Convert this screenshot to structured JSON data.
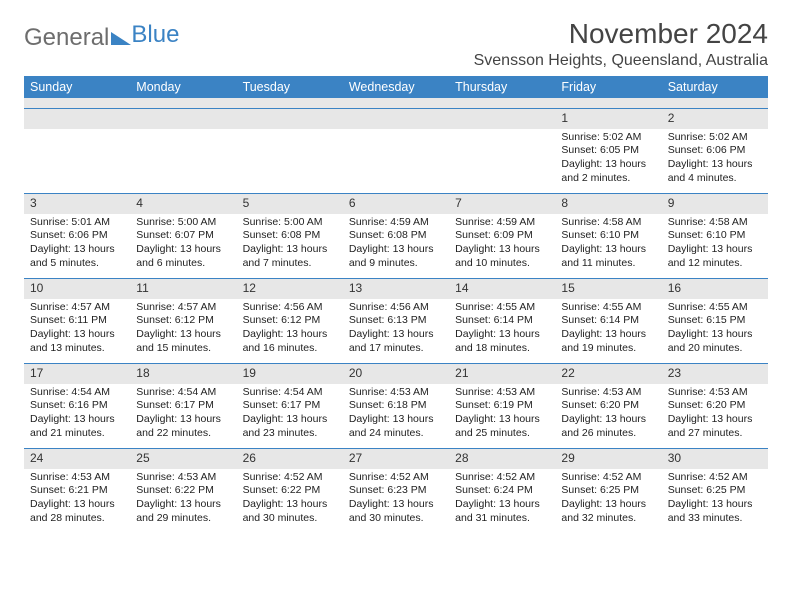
{
  "logo": {
    "word1": "General",
    "word2": "Blue"
  },
  "title": "November 2024",
  "location": "Svensson Heights, Queensland, Australia",
  "day_names": [
    "Sunday",
    "Monday",
    "Tuesday",
    "Wednesday",
    "Thursday",
    "Friday",
    "Saturday"
  ],
  "colors": {
    "header_bg": "#3b83c4",
    "header_fg": "#ffffff",
    "stripe": "#e7e7e7",
    "rule": "#3b83c4",
    "logo_gray": "#6d6d6d",
    "logo_blue": "#3b83c4"
  },
  "weeks": [
    [
      null,
      null,
      null,
      null,
      null,
      {
        "n": "1",
        "sunrise": "Sunrise: 5:02 AM",
        "sunset": "Sunset: 6:05 PM",
        "daylight": "Daylight: 13 hours and 2 minutes."
      },
      {
        "n": "2",
        "sunrise": "Sunrise: 5:02 AM",
        "sunset": "Sunset: 6:06 PM",
        "daylight": "Daylight: 13 hours and 4 minutes."
      }
    ],
    [
      {
        "n": "3",
        "sunrise": "Sunrise: 5:01 AM",
        "sunset": "Sunset: 6:06 PM",
        "daylight": "Daylight: 13 hours and 5 minutes."
      },
      {
        "n": "4",
        "sunrise": "Sunrise: 5:00 AM",
        "sunset": "Sunset: 6:07 PM",
        "daylight": "Daylight: 13 hours and 6 minutes."
      },
      {
        "n": "5",
        "sunrise": "Sunrise: 5:00 AM",
        "sunset": "Sunset: 6:08 PM",
        "daylight": "Daylight: 13 hours and 7 minutes."
      },
      {
        "n": "6",
        "sunrise": "Sunrise: 4:59 AM",
        "sunset": "Sunset: 6:08 PM",
        "daylight": "Daylight: 13 hours and 9 minutes."
      },
      {
        "n": "7",
        "sunrise": "Sunrise: 4:59 AM",
        "sunset": "Sunset: 6:09 PM",
        "daylight": "Daylight: 13 hours and 10 minutes."
      },
      {
        "n": "8",
        "sunrise": "Sunrise: 4:58 AM",
        "sunset": "Sunset: 6:10 PM",
        "daylight": "Daylight: 13 hours and 11 minutes."
      },
      {
        "n": "9",
        "sunrise": "Sunrise: 4:58 AM",
        "sunset": "Sunset: 6:10 PM",
        "daylight": "Daylight: 13 hours and 12 minutes."
      }
    ],
    [
      {
        "n": "10",
        "sunrise": "Sunrise: 4:57 AM",
        "sunset": "Sunset: 6:11 PM",
        "daylight": "Daylight: 13 hours and 13 minutes."
      },
      {
        "n": "11",
        "sunrise": "Sunrise: 4:57 AM",
        "sunset": "Sunset: 6:12 PM",
        "daylight": "Daylight: 13 hours and 15 minutes."
      },
      {
        "n": "12",
        "sunrise": "Sunrise: 4:56 AM",
        "sunset": "Sunset: 6:12 PM",
        "daylight": "Daylight: 13 hours and 16 minutes."
      },
      {
        "n": "13",
        "sunrise": "Sunrise: 4:56 AM",
        "sunset": "Sunset: 6:13 PM",
        "daylight": "Daylight: 13 hours and 17 minutes."
      },
      {
        "n": "14",
        "sunrise": "Sunrise: 4:55 AM",
        "sunset": "Sunset: 6:14 PM",
        "daylight": "Daylight: 13 hours and 18 minutes."
      },
      {
        "n": "15",
        "sunrise": "Sunrise: 4:55 AM",
        "sunset": "Sunset: 6:14 PM",
        "daylight": "Daylight: 13 hours and 19 minutes."
      },
      {
        "n": "16",
        "sunrise": "Sunrise: 4:55 AM",
        "sunset": "Sunset: 6:15 PM",
        "daylight": "Daylight: 13 hours and 20 minutes."
      }
    ],
    [
      {
        "n": "17",
        "sunrise": "Sunrise: 4:54 AM",
        "sunset": "Sunset: 6:16 PM",
        "daylight": "Daylight: 13 hours and 21 minutes."
      },
      {
        "n": "18",
        "sunrise": "Sunrise: 4:54 AM",
        "sunset": "Sunset: 6:17 PM",
        "daylight": "Daylight: 13 hours and 22 minutes."
      },
      {
        "n": "19",
        "sunrise": "Sunrise: 4:54 AM",
        "sunset": "Sunset: 6:17 PM",
        "daylight": "Daylight: 13 hours and 23 minutes."
      },
      {
        "n": "20",
        "sunrise": "Sunrise: 4:53 AM",
        "sunset": "Sunset: 6:18 PM",
        "daylight": "Daylight: 13 hours and 24 minutes."
      },
      {
        "n": "21",
        "sunrise": "Sunrise: 4:53 AM",
        "sunset": "Sunset: 6:19 PM",
        "daylight": "Daylight: 13 hours and 25 minutes."
      },
      {
        "n": "22",
        "sunrise": "Sunrise: 4:53 AM",
        "sunset": "Sunset: 6:20 PM",
        "daylight": "Daylight: 13 hours and 26 minutes."
      },
      {
        "n": "23",
        "sunrise": "Sunrise: 4:53 AM",
        "sunset": "Sunset: 6:20 PM",
        "daylight": "Daylight: 13 hours and 27 minutes."
      }
    ],
    [
      {
        "n": "24",
        "sunrise": "Sunrise: 4:53 AM",
        "sunset": "Sunset: 6:21 PM",
        "daylight": "Daylight: 13 hours and 28 minutes."
      },
      {
        "n": "25",
        "sunrise": "Sunrise: 4:53 AM",
        "sunset": "Sunset: 6:22 PM",
        "daylight": "Daylight: 13 hours and 29 minutes."
      },
      {
        "n": "26",
        "sunrise": "Sunrise: 4:52 AM",
        "sunset": "Sunset: 6:22 PM",
        "daylight": "Daylight: 13 hours and 30 minutes."
      },
      {
        "n": "27",
        "sunrise": "Sunrise: 4:52 AM",
        "sunset": "Sunset: 6:23 PM",
        "daylight": "Daylight: 13 hours and 30 minutes."
      },
      {
        "n": "28",
        "sunrise": "Sunrise: 4:52 AM",
        "sunset": "Sunset: 6:24 PM",
        "daylight": "Daylight: 13 hours and 31 minutes."
      },
      {
        "n": "29",
        "sunrise": "Sunrise: 4:52 AM",
        "sunset": "Sunset: 6:25 PM",
        "daylight": "Daylight: 13 hours and 32 minutes."
      },
      {
        "n": "30",
        "sunrise": "Sunrise: 4:52 AM",
        "sunset": "Sunset: 6:25 PM",
        "daylight": "Daylight: 13 hours and 33 minutes."
      }
    ]
  ]
}
